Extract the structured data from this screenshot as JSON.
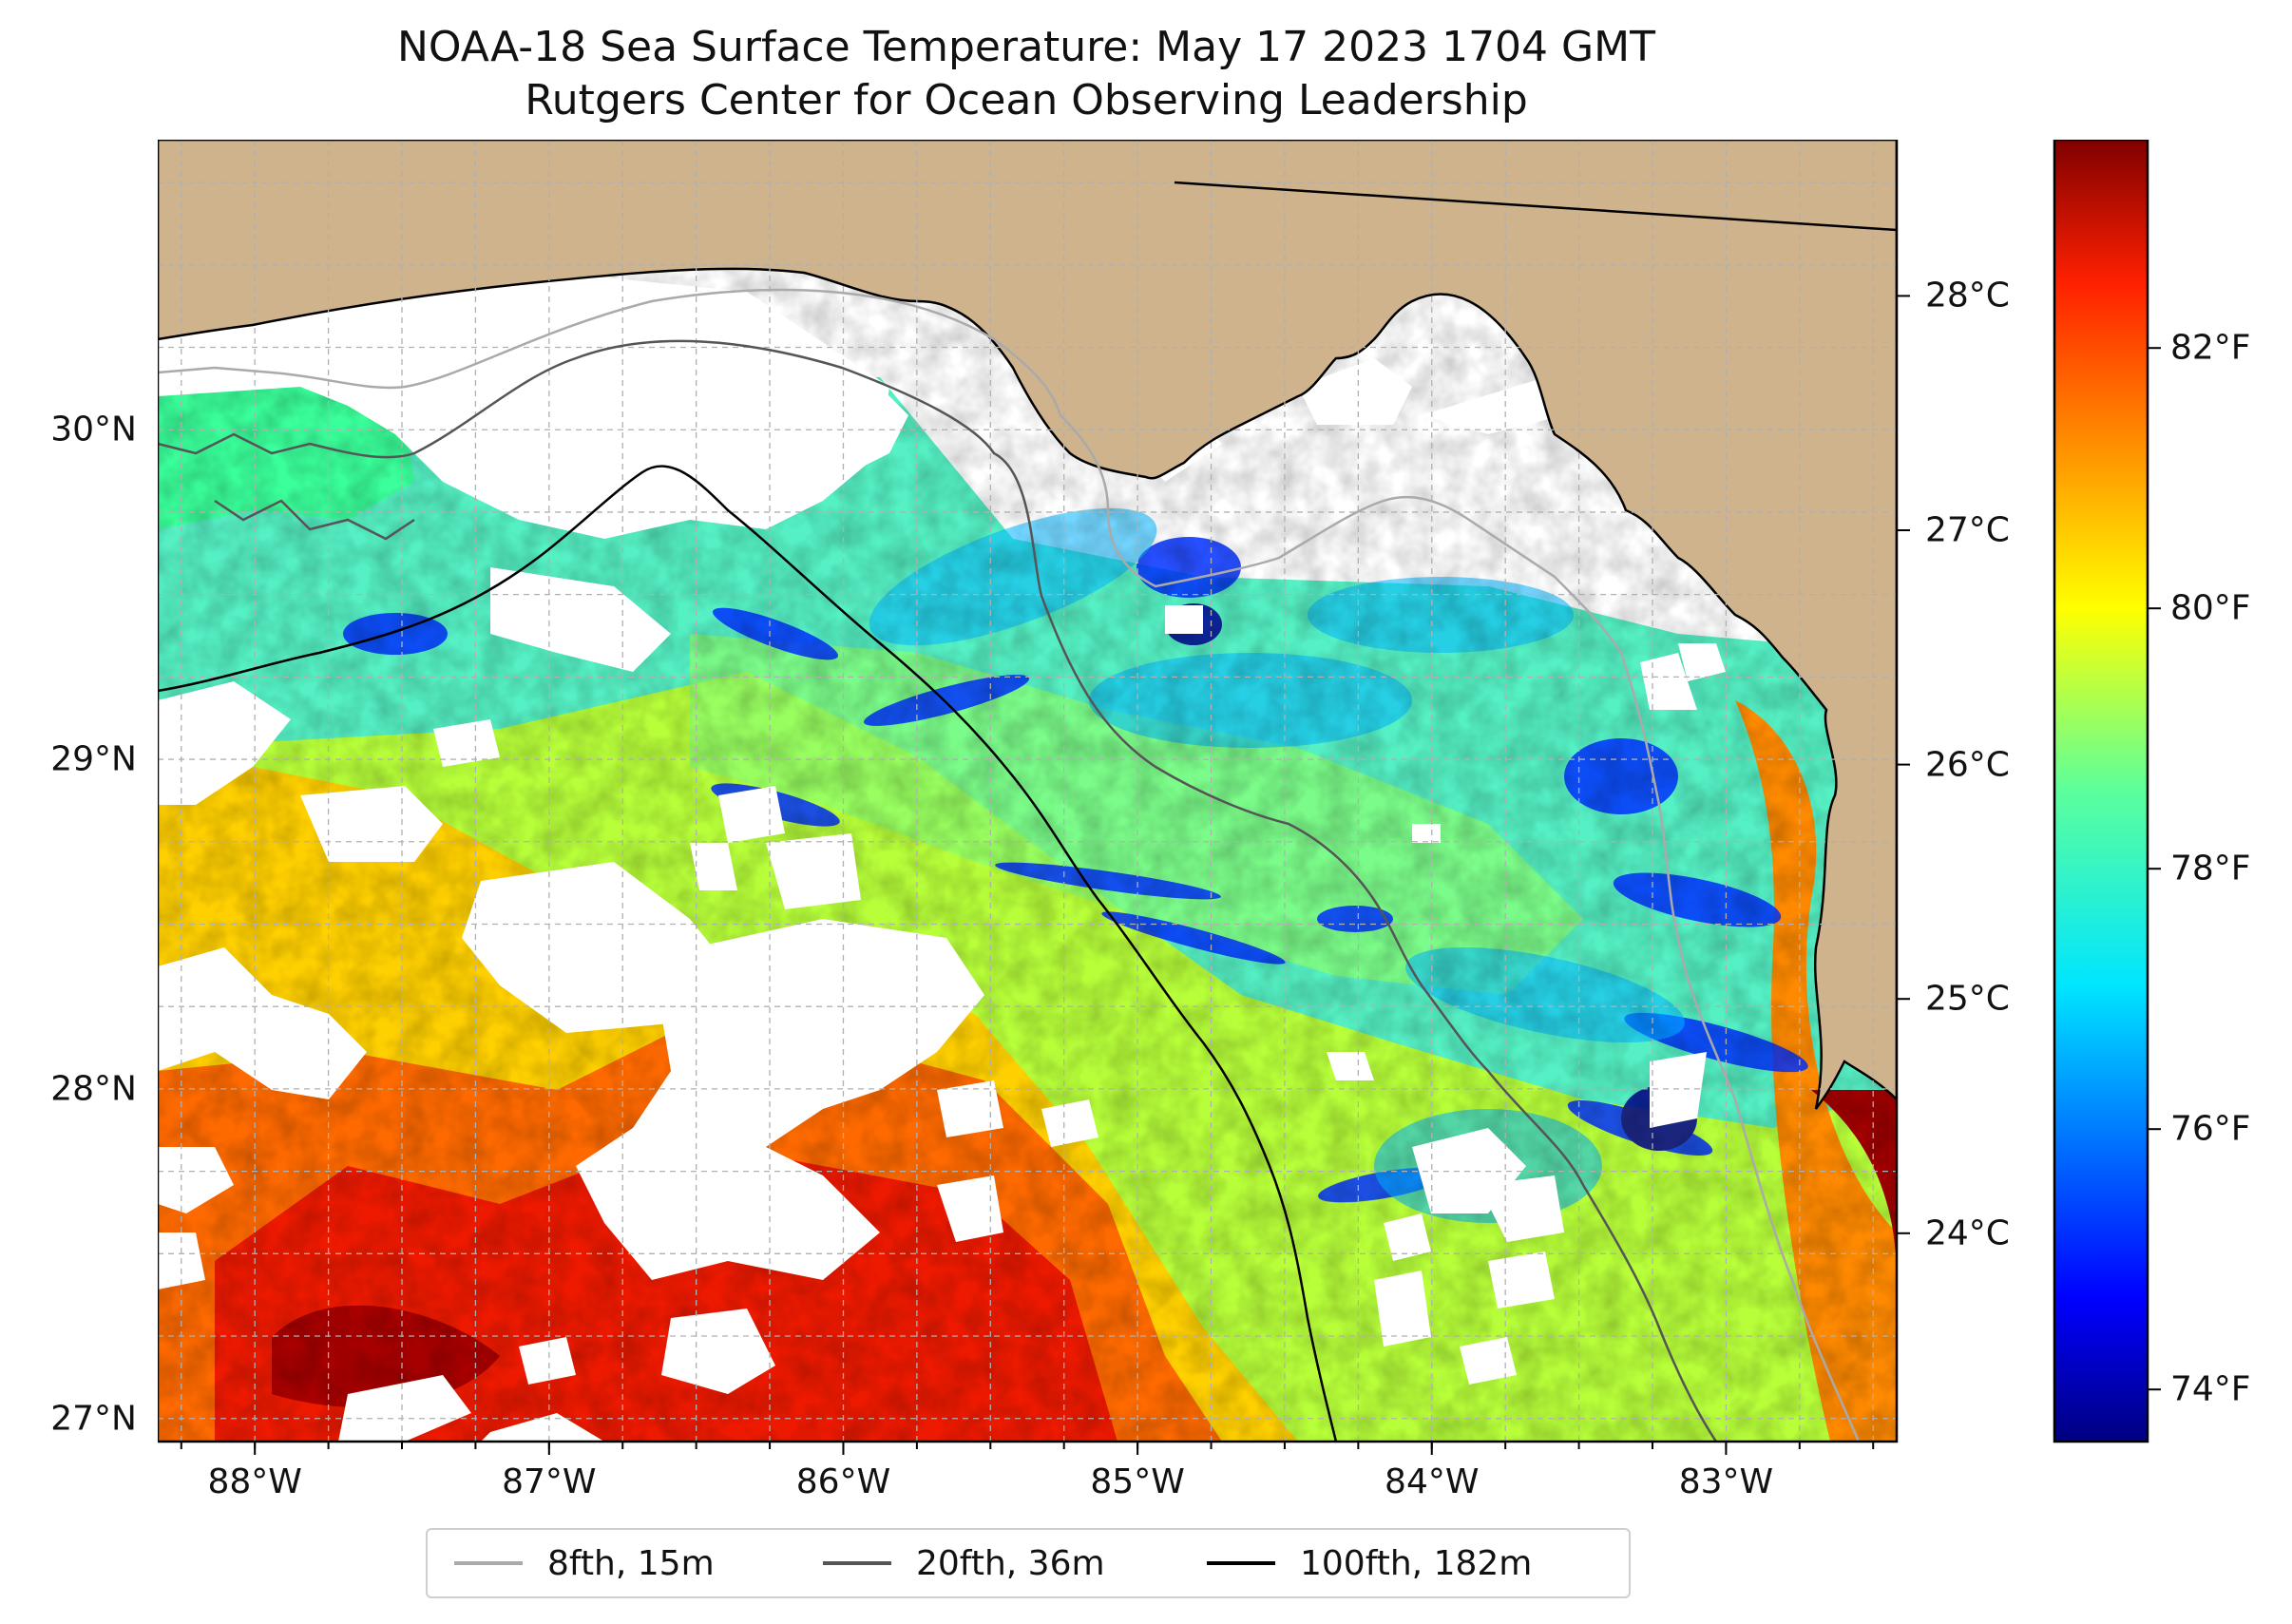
{
  "title": {
    "line1": "NOAA-18 Sea Surface Temperature: May 17 2023 1704 GMT",
    "line2": "Rutgers Center for Ocean Observing Leadership"
  },
  "map": {
    "lon_range": [
      -88.33,
      -82.42
    ],
    "lat_range": [
      26.93,
      30.88
    ],
    "land_color": "#cfb38c",
    "no_data_color": "#ffffff",
    "x_ticks": [
      {
        "lon": -88,
        "label": "88°W"
      },
      {
        "lon": -87,
        "label": "87°W"
      },
      {
        "lon": -86,
        "label": "86°W"
      },
      {
        "lon": -85,
        "label": "85°W"
      },
      {
        "lon": -84,
        "label": "84°W"
      },
      {
        "lon": -83,
        "label": "83°W"
      }
    ],
    "y_ticks": [
      {
        "lat": 30,
        "label": "30°N"
      },
      {
        "lat": 29,
        "label": "29°N"
      },
      {
        "lat": 28,
        "label": "28°N"
      },
      {
        "lat": 27,
        "label": "27°N"
      }
    ]
  },
  "colorbar": {
    "colormap": "jet",
    "range_f": [
      73.6,
      83.6
    ],
    "celsius_ticks": [
      {
        "value": 28,
        "label": "28°C"
      },
      {
        "value": 27,
        "label": "27°C"
      },
      {
        "value": 26,
        "label": "26°C"
      },
      {
        "value": 25,
        "label": "25°C"
      },
      {
        "value": 24,
        "label": "24°C"
      }
    ],
    "fahrenheit_ticks": [
      {
        "value": 82,
        "label": "82°F"
      },
      {
        "value": 80,
        "label": "80°F"
      },
      {
        "value": 78,
        "label": "78°F"
      },
      {
        "value": 76,
        "label": "76°F"
      },
      {
        "value": 74,
        "label": "74°F"
      }
    ]
  },
  "legend": {
    "items": [
      {
        "label": "8fth, 15m",
        "color": "#aaaaaa"
      },
      {
        "label": "20fth, 36m",
        "color": "#555555"
      },
      {
        "label": "100fth, 182m",
        "color": "#000000"
      }
    ]
  }
}
